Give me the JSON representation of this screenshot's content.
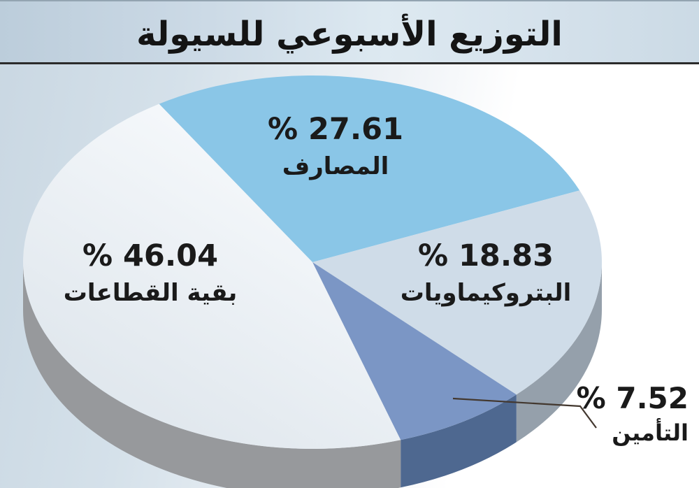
{
  "header": {
    "title": "التوزيع الأسبوعي للسيولة"
  },
  "chart_data": {
    "type": "pie",
    "style": "3d",
    "title": "التوزيع الأسبوعي للسيولة",
    "unit": "%",
    "direction": "clockwise",
    "start_angle_deg": -122,
    "legend_position": "on-slice",
    "slices": [
      {
        "name": "المصارف",
        "value": 27.61,
        "display": "% 27.61",
        "color": "#8ac6e7"
      },
      {
        "name": "البتروكيماويات",
        "value": 18.83,
        "display": "% 18.83",
        "color": "#cfdce8",
        "side_color": "#95a0ab"
      },
      {
        "name": "التأمين",
        "value": 7.52,
        "display": "% 7.52",
        "color": "#7b96c5",
        "side_color": "#4e6890",
        "callout": true
      },
      {
        "name": "بقية القطاعات",
        "value": 46.04,
        "display": "% 46.04",
        "color": "#eef3f7",
        "gradient": [
          "#fafcfe",
          "#dbe3ea"
        ],
        "side_color": "#97999c"
      }
    ],
    "leader_line_color": "#43382f",
    "label_color": "#1a1a1a"
  }
}
